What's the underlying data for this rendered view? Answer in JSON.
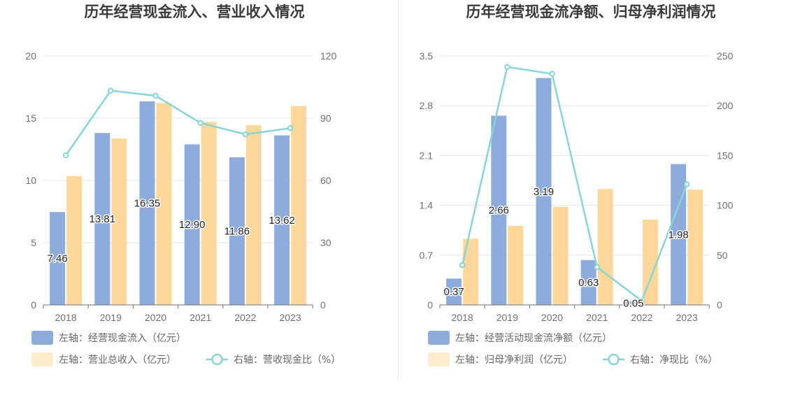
{
  "chart_data": [
    {
      "type": "bar",
      "title": "历年经营现金流入、营业收入情况",
      "categories": [
        "2018",
        "2019",
        "2020",
        "2021",
        "2022",
        "2023"
      ],
      "left_axis": {
        "ylim": [
          0,
          20
        ],
        "ticks": [
          "0",
          "5",
          "10",
          "15",
          "20"
        ]
      },
      "right_axis": {
        "ylim": [
          0,
          120
        ],
        "ticks": [
          "0",
          "30",
          "60",
          "90",
          "120"
        ]
      },
      "grid": true,
      "series": [
        {
          "name": "左轴：经营现金流入（亿元）",
          "kind": "bar",
          "axis": "left",
          "color": "#8eacdb",
          "values": [
            7.46,
            13.81,
            16.35,
            12.9,
            11.86,
            13.62
          ],
          "labels": [
            "7.46",
            "13.81",
            "16.35",
            "12.90",
            "11.86",
            "13.62"
          ]
        },
        {
          "name": "左轴：营业总收入（亿元）",
          "kind": "bar",
          "axis": "left",
          "color": "#fed89b",
          "values": [
            10.35,
            13.37,
            16.22,
            14.71,
            14.43,
            15.98
          ]
        },
        {
          "name": "右轴：营收现金比（%）",
          "kind": "line",
          "axis": "right",
          "color": "#88d5d7",
          "values": [
            72.1,
            103.3,
            100.8,
            87.7,
            82.2,
            85.2
          ]
        }
      ],
      "legend_position": "bottom-left"
    },
    {
      "type": "bar",
      "title": "历年经营现金流净额、归母净利润情况",
      "categories": [
        "2018",
        "2019",
        "2020",
        "2021",
        "2022",
        "2023"
      ],
      "left_axis": {
        "ylim": [
          0,
          3.5
        ],
        "ticks": [
          "0",
          "0.7",
          "1.4",
          "2.1",
          "2.8",
          "3.5"
        ]
      },
      "right_axis": {
        "ylim": [
          0,
          250
        ],
        "ticks": [
          "0",
          "50",
          "100",
          "150",
          "200",
          "250"
        ]
      },
      "grid": true,
      "series": [
        {
          "name": "左轴：经营活动现金流净额（亿元）",
          "kind": "bar",
          "axis": "left",
          "color": "#8eacdb",
          "values": [
            0.37,
            2.66,
            3.19,
            0.63,
            0.05,
            1.98
          ],
          "labels": [
            "0.37",
            "2.66",
            "3.19",
            "0.63",
            "0.05",
            "1.98"
          ]
        },
        {
          "name": "左轴：归母净利润（亿元）",
          "kind": "bar",
          "axis": "left",
          "color": "#fed89b",
          "values": [
            0.93,
            1.11,
            1.38,
            1.63,
            1.2,
            1.62
          ]
        },
        {
          "name": "右轴：净现比（%）",
          "kind": "line",
          "axis": "right",
          "color": "#88d5d7",
          "values": [
            40,
            239,
            232,
            38,
            4,
            121
          ]
        }
      ],
      "legend_position": "bottom-left"
    }
  ]
}
